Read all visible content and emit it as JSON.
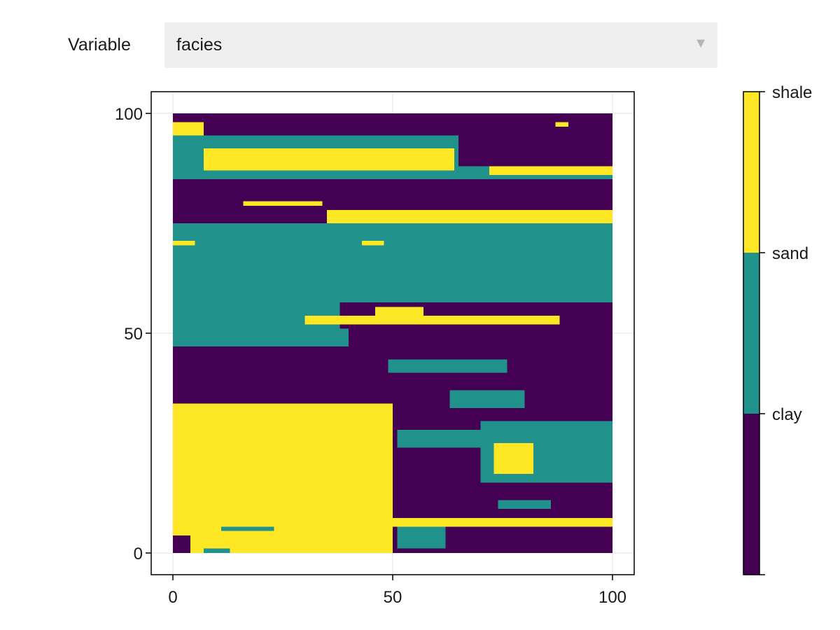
{
  "controls": {
    "variable_label": "Variable",
    "variable_selected": "facies",
    "dropdown_arrow": "▼"
  },
  "chart_data": {
    "type": "heatmap",
    "variable": "facies",
    "grid": true,
    "xlim": [
      0,
      100
    ],
    "ylim": [
      0,
      100
    ],
    "x_ticks": [
      "0",
      "50",
      "100"
    ],
    "y_ticks": [
      "0",
      "50",
      "100"
    ],
    "categories": [
      "clay",
      "sand",
      "shale"
    ],
    "colors": {
      "clay": "#440154",
      "sand": "#21918c",
      "shale": "#fde725"
    },
    "colorbar": {
      "labels": [
        "shale",
        "sand",
        "clay"
      ],
      "placement": "right"
    },
    "facies_regions": [
      {
        "facies": "clay",
        "x": [
          0,
          100
        ],
        "y": [
          0,
          100
        ]
      },
      {
        "facies": "shale",
        "x": [
          0,
          50
        ],
        "y": [
          0,
          34
        ]
      },
      {
        "facies": "clay",
        "x": [
          0,
          4
        ],
        "y": [
          0,
          4
        ]
      },
      {
        "facies": "sand",
        "x": [
          7,
          13
        ],
        "y": [
          0,
          1
        ]
      },
      {
        "facies": "shale",
        "x": [
          0,
          9
        ],
        "y": [
          5,
          7
        ]
      },
      {
        "facies": "sand",
        "x": [
          11,
          23
        ],
        "y": [
          5,
          6
        ]
      },
      {
        "facies": "shale",
        "x": [
          50,
          100
        ],
        "y": [
          6,
          8
        ]
      },
      {
        "facies": "sand",
        "x": [
          51,
          62
        ],
        "y": [
          1,
          6
        ]
      },
      {
        "facies": "sand",
        "x": [
          74,
          86
        ],
        "y": [
          10,
          12
        ]
      },
      {
        "facies": "sand",
        "x": [
          51,
          74
        ],
        "y": [
          24,
          28
        ]
      },
      {
        "facies": "sand",
        "x": [
          70,
          100
        ],
        "y": [
          16,
          30
        ]
      },
      {
        "facies": "shale",
        "x": [
          73,
          82
        ],
        "y": [
          18,
          25
        ]
      },
      {
        "facies": "sand",
        "x": [
          63,
          80
        ],
        "y": [
          33,
          37
        ]
      },
      {
        "facies": "sand",
        "x": [
          49,
          76
        ],
        "y": [
          41,
          44
        ]
      },
      {
        "facies": "sand",
        "x": [
          0,
          38
        ],
        "y": [
          47,
          57
        ]
      },
      {
        "facies": "sand",
        "x": [
          25,
          40
        ],
        "y": [
          47,
          51
        ]
      },
      {
        "facies": "shale",
        "x": [
          30,
          88
        ],
        "y": [
          52,
          54
        ]
      },
      {
        "facies": "shale",
        "x": [
          46,
          57
        ],
        "y": [
          54,
          56
        ]
      },
      {
        "facies": "sand",
        "x": [
          0,
          100
        ],
        "y": [
          57,
          75
        ]
      },
      {
        "facies": "shale",
        "x": [
          0,
          5
        ],
        "y": [
          70,
          71
        ]
      },
      {
        "facies": "shale",
        "x": [
          43,
          48
        ],
        "y": [
          70,
          71
        ]
      },
      {
        "facies": "clay",
        "x": [
          0,
          100
        ],
        "y": [
          75,
          85
        ]
      },
      {
        "facies": "shale",
        "x": [
          35,
          100
        ],
        "y": [
          75,
          78
        ]
      },
      {
        "facies": "shale",
        "x": [
          16,
          34
        ],
        "y": [
          79,
          80
        ]
      },
      {
        "facies": "sand",
        "x": [
          0,
          100
        ],
        "y": [
          85,
          95
        ]
      },
      {
        "facies": "shale",
        "x": [
          7,
          64
        ],
        "y": [
          87,
          92
        ]
      },
      {
        "facies": "shale",
        "x": [
          72,
          100
        ],
        "y": [
          86,
          88
        ]
      },
      {
        "facies": "clay",
        "x": [
          65,
          100
        ],
        "y": [
          88,
          97
        ]
      },
      {
        "facies": "shale",
        "x": [
          0,
          7
        ],
        "y": [
          95,
          98
        ]
      },
      {
        "facies": "clay",
        "x": [
          25,
          60
        ],
        "y": [
          96,
          100
        ]
      },
      {
        "facies": "clay",
        "x": [
          84,
          95
        ],
        "y": [
          99,
          100
        ]
      },
      {
        "facies": "shale",
        "x": [
          87,
          90
        ],
        "y": [
          97,
          98
        ]
      }
    ]
  }
}
